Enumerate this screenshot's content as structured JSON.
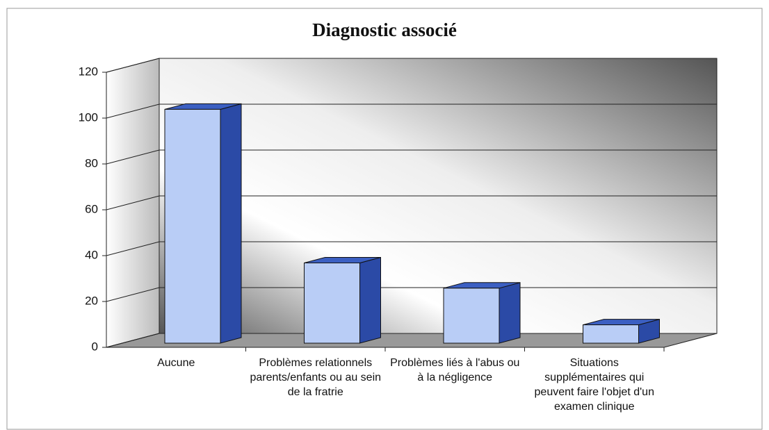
{
  "chart_data": {
    "type": "bar3d",
    "title": "Diagnostic associé",
    "categories": [
      "Aucune",
      "Problèmes relationnels parents/enfants ou au sein de la fratrie",
      "Problèmes liés à l'abus ou à la négligence",
      "Situations supplémentaires qui peuvent faire l'objet d'un examen clinique"
    ],
    "values": [
      102,
      35,
      24,
      8
    ],
    "color": "#b9cdf6",
    "ylim": [
      0,
      120
    ],
    "yticks": [
      0,
      20,
      40,
      60,
      80,
      100,
      120
    ],
    "grid": true
  }
}
